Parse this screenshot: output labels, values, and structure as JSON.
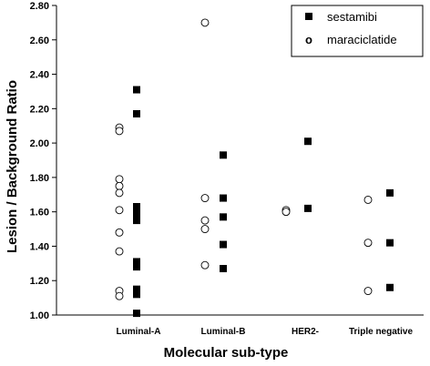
{
  "chart_data": {
    "type": "scatter",
    "title": "",
    "xlabel": "Molecular sub-type",
    "ylabel": "Lesion / Background Ratio",
    "ylim": [
      1.0,
      2.8
    ],
    "ytick_step": 0.2,
    "yticks": [
      "1.00",
      "1.20",
      "1.40",
      "1.60",
      "1.80",
      "2.00",
      "2.20",
      "2.40",
      "2.60",
      "2.80"
    ],
    "categories": [
      "Luminal-A",
      "Luminal-B",
      "HER2-",
      "Triple negative"
    ],
    "grid": false,
    "legend": {
      "placement": "top-right",
      "entries": [
        {
          "name": "sestamibi",
          "marker": "filled-square"
        },
        {
          "name": "maraciclatide",
          "marker": "open-circle",
          "glyph": "o"
        }
      ]
    },
    "series": [
      {
        "name": "maraciclatide",
        "marker": "open-circle",
        "points": [
          {
            "category": "Luminal-A",
            "y": 2.09
          },
          {
            "category": "Luminal-A",
            "y": 2.07
          },
          {
            "category": "Luminal-A",
            "y": 1.79
          },
          {
            "category": "Luminal-A",
            "y": 1.75
          },
          {
            "category": "Luminal-A",
            "y": 1.71
          },
          {
            "category": "Luminal-A",
            "y": 1.61
          },
          {
            "category": "Luminal-A",
            "y": 1.48
          },
          {
            "category": "Luminal-A",
            "y": 1.37
          },
          {
            "category": "Luminal-A",
            "y": 1.14
          },
          {
            "category": "Luminal-A",
            "y": 1.11
          },
          {
            "category": "Luminal-B",
            "y": 2.7
          },
          {
            "category": "Luminal-B",
            "y": 1.68
          },
          {
            "category": "Luminal-B",
            "y": 1.55
          },
          {
            "category": "Luminal-B",
            "y": 1.5
          },
          {
            "category": "Luminal-B",
            "y": 1.29
          },
          {
            "category": "HER2-",
            "y": 1.61
          },
          {
            "category": "HER2-",
            "y": 1.6
          },
          {
            "category": "Triple negative",
            "y": 1.67
          },
          {
            "category": "Triple negative",
            "y": 1.42
          },
          {
            "category": "Triple negative",
            "y": 1.14
          }
        ]
      },
      {
        "name": "sestamibi",
        "marker": "filled-square",
        "points": [
          {
            "category": "Luminal-A",
            "y": 2.31
          },
          {
            "category": "Luminal-A",
            "y": 2.17
          },
          {
            "category": "Luminal-A",
            "y": 1.63
          },
          {
            "category": "Luminal-A",
            "y": 1.61
          },
          {
            "category": "Luminal-A",
            "y": 1.59
          },
          {
            "category": "Luminal-A",
            "y": 1.55
          },
          {
            "category": "Luminal-A",
            "y": 1.31
          },
          {
            "category": "Luminal-A",
            "y": 1.28
          },
          {
            "category": "Luminal-A",
            "y": 1.15
          },
          {
            "category": "Luminal-A",
            "y": 1.12
          },
          {
            "category": "Luminal-A",
            "y": 1.01
          },
          {
            "category": "Luminal-B",
            "y": 1.93
          },
          {
            "category": "Luminal-B",
            "y": 1.68
          },
          {
            "category": "Luminal-B",
            "y": 1.57
          },
          {
            "category": "Luminal-B",
            "y": 1.41
          },
          {
            "category": "Luminal-B",
            "y": 1.27
          },
          {
            "category": "HER2-",
            "y": 2.01
          },
          {
            "category": "HER2-",
            "y": 1.62
          },
          {
            "category": "Triple negative",
            "y": 1.71
          },
          {
            "category": "Triple negative",
            "y": 1.42
          },
          {
            "category": "Triple negative",
            "y": 1.16
          }
        ]
      }
    ]
  }
}
